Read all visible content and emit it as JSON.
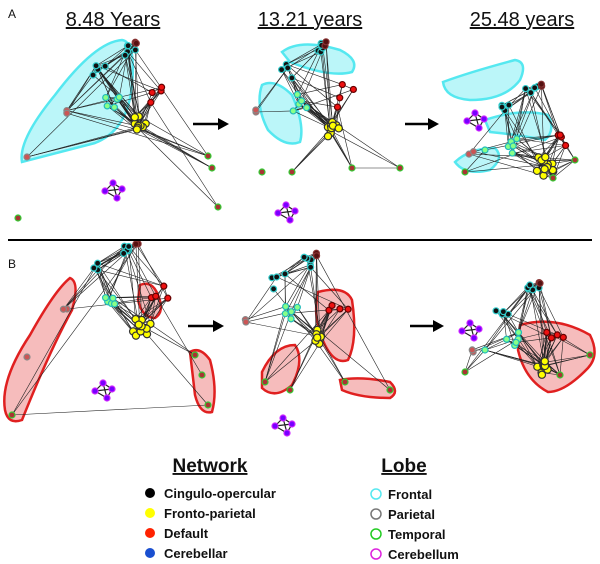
{
  "figure": {
    "panel_a_label": "A",
    "panel_b_label": "B",
    "ages": [
      "8.48 Years",
      "13.21 years",
      "25.48 years"
    ],
    "panel_a_highlight": "Frontal",
    "panel_b_highlight": "Default"
  },
  "legend": {
    "network_title": "Network",
    "networks": [
      {
        "label": "Cingulo-opercular",
        "color": "#000000"
      },
      {
        "label": "Fronto-parietal",
        "color": "#ffff00"
      },
      {
        "label": "Default",
        "color": "#ff2200"
      },
      {
        "label": "Cerebellar",
        "color": "#1a4fd0"
      }
    ],
    "lobe_title": "Lobe",
    "lobes": [
      {
        "label": "Frontal",
        "color": "#55e8f0"
      },
      {
        "label": "Parietal",
        "color": "#777777"
      },
      {
        "label": "Temporal",
        "color": "#22cc22"
      },
      {
        "label": "Cerebellum",
        "color": "#dd22dd"
      }
    ],
    "highlight_colors": {
      "frontal_hull": "#55e8f0",
      "default_hull": "#e02020"
    }
  }
}
